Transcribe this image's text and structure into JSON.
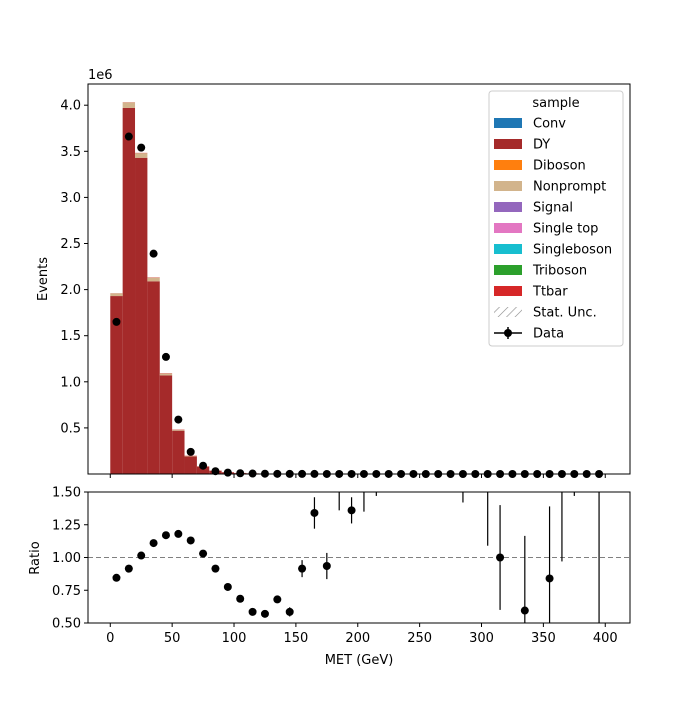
{
  "chart_data": {
    "type": "bar",
    "x": [
      5,
      15,
      25,
      35,
      45,
      55,
      65,
      75,
      85,
      95,
      105,
      115,
      125,
      135,
      145,
      155,
      165,
      175,
      185,
      195,
      205,
      215,
      225,
      235,
      245,
      255,
      265,
      275,
      285,
      295,
      305,
      315,
      325,
      335,
      345,
      355,
      365,
      375,
      385,
      395
    ],
    "bin_width": 10,
    "xlabel": "MET (GeV)",
    "ylabel": "Events",
    "y_scale_label": "1e6",
    "xlim": [
      -18,
      420
    ],
    "ylim": [
      0,
      4.23
    ],
    "xticks": [
      "0",
      "50",
      "100",
      "150",
      "200",
      "250",
      "300",
      "350",
      "400"
    ],
    "xtick_values": [
      0,
      50,
      100,
      150,
      200,
      250,
      300,
      350,
      400
    ],
    "yticks": [
      "0.5",
      "1.0",
      "1.5",
      "2.0",
      "2.5",
      "3.0",
      "3.5",
      "4.0"
    ],
    "ytick_values": [
      0.5,
      1.0,
      1.5,
      2.0,
      2.5,
      3.0,
      3.5,
      4.0
    ],
    "series": [
      {
        "name": "DY",
        "color": "#a52a2a",
        "values": [
          1.93,
          3.97,
          3.43,
          2.09,
          1.07,
          0.47,
          0.19,
          0.08,
          0.035,
          0.018,
          0.01,
          0.006,
          0.004,
          0.003,
          0.002,
          0.0015,
          0.001,
          0.0008,
          0.0006,
          0.0005,
          0.0004,
          0.0003,
          0.0003,
          0.0002,
          0.0002,
          0.0002,
          0.0001,
          0.0001,
          0.0001,
          0.0001,
          0.0001,
          0.0001,
          0.0001,
          0.0001,
          0.0001,
          0.0001,
          0.0001,
          0.0001,
          0.0001,
          0.0001
        ]
      },
      {
        "name": "Nonprompt",
        "color": "#d2b48c",
        "values": [
          0.03,
          0.06,
          0.05,
          0.04,
          0.02,
          0.01,
          0.005,
          0.003,
          0.002,
          0.001,
          0.0005,
          0.0003,
          0.0002,
          0.0001,
          0.0001,
          0.0001,
          0,
          0,
          0,
          0,
          0,
          0,
          0,
          0,
          0,
          0,
          0,
          0,
          0,
          0,
          0,
          0,
          0,
          0,
          0,
          0,
          0,
          0,
          0,
          0
        ]
      },
      {
        "name": "Ttbar",
        "color": "#d62728",
        "values": [
          0.001,
          0.002,
          0.003,
          0.003,
          0.003,
          0.003,
          0.003,
          0.002,
          0.002,
          0.001,
          0.001,
          0.001,
          0.0005,
          0.0005,
          0.0003,
          0.0002,
          0.0002,
          0.0001,
          0.0001,
          0.0001,
          0,
          0,
          0,
          0,
          0,
          0,
          0,
          0,
          0,
          0,
          0,
          0,
          0,
          0,
          0,
          0,
          0,
          0,
          0,
          0
        ]
      }
    ],
    "data": {
      "name": "Data",
      "values": [
        1.65,
        3.66,
        3.54,
        2.39,
        1.27,
        0.59,
        0.24,
        0.09,
        0.03,
        0.015,
        0.008,
        0.005,
        0.003,
        0.002,
        0.0015,
        0.001,
        0.0008,
        0.0006,
        0.0005,
        0.0004,
        0.0003,
        0.0003,
        0.0002,
        0.0002,
        0.0002,
        0.0001,
        0.0001,
        0.0001,
        0.0001,
        0.0001,
        0.0001,
        0.0001,
        0.0001,
        0.0001,
        0.0001,
        0.0001,
        0.0001,
        0.0001,
        0.0001,
        0.0001
      ]
    },
    "legend": {
      "title": "sample",
      "placement": "top-right",
      "entries": [
        {
          "label": "Conv",
          "kind": "patch",
          "color": "#1f77b4"
        },
        {
          "label": "DY",
          "kind": "patch",
          "color": "#a52a2a"
        },
        {
          "label": "Diboson",
          "kind": "patch",
          "color": "#ff7f0e"
        },
        {
          "label": "Nonprompt",
          "kind": "patch",
          "color": "#d2b48c"
        },
        {
          "label": "Signal",
          "kind": "patch",
          "color": "#9467bd"
        },
        {
          "label": "Single top",
          "kind": "patch",
          "color": "#e377c2"
        },
        {
          "label": "Singleboson",
          "kind": "patch",
          "color": "#17becf"
        },
        {
          "label": "Triboson",
          "kind": "patch",
          "color": "#2ca02c"
        },
        {
          "label": "Ttbar",
          "kind": "patch",
          "color": "#d62728"
        },
        {
          "label": "Stat. Unc.",
          "kind": "hatch",
          "color": "#888888"
        },
        {
          "label": "Data",
          "kind": "errorbar",
          "color": "#000000"
        }
      ]
    },
    "ratio": {
      "ylabel": "Ratio",
      "ylim": [
        0.5,
        1.5
      ],
      "yticks": [
        "0.50",
        "0.75",
        "1.00",
        "1.25",
        "1.50"
      ],
      "ytick_values": [
        0.5,
        0.75,
        1.0,
        1.25,
        1.5
      ],
      "reference_line": 1.0,
      "points": [
        {
          "x": 5,
          "y": 0.845,
          "err": 0.003
        },
        {
          "x": 15,
          "y": 0.915,
          "err": 0.003
        },
        {
          "x": 25,
          "y": 1.015,
          "err": 0.003
        },
        {
          "x": 35,
          "y": 1.11,
          "err": 0.004
        },
        {
          "x": 45,
          "y": 1.17,
          "err": 0.005
        },
        {
          "x": 55,
          "y": 1.18,
          "err": 0.006
        },
        {
          "x": 65,
          "y": 1.13,
          "err": 0.008
        },
        {
          "x": 75,
          "y": 1.03,
          "err": 0.01
        },
        {
          "x": 85,
          "y": 0.915,
          "err": 0.012
        },
        {
          "x": 95,
          "y": 0.775,
          "err": 0.015
        },
        {
          "x": 105,
          "y": 0.685,
          "err": 0.018
        },
        {
          "x": 115,
          "y": 0.585,
          "err": 0.02
        },
        {
          "x": 125,
          "y": 0.57,
          "err": 0.022
        },
        {
          "x": 135,
          "y": 0.68,
          "err": 0.025
        },
        {
          "x": 145,
          "y": 0.585,
          "err": 0.035
        },
        {
          "x": 155,
          "y": 0.915,
          "err": 0.065
        },
        {
          "x": 165,
          "y": 1.34,
          "err": 0.12
        },
        {
          "x": 175,
          "y": 0.935,
          "err": 0.1
        },
        {
          "x": 195,
          "y": 1.36,
          "err": 0.1
        },
        {
          "x": 315,
          "y": 1.0,
          "err": 0.4
        },
        {
          "x": 335,
          "y": 0.595,
          "err": 0.57
        },
        {
          "x": 355,
          "y": 0.84,
          "err": 0.55
        }
      ],
      "offscale_bars": [
        {
          "x": 185,
          "low": 1.36
        },
        {
          "x": 205,
          "low": 1.35
        },
        {
          "x": 215,
          "low": 1.47
        },
        {
          "x": 285,
          "low": 1.42
        },
        {
          "x": 305,
          "low": 1.09
        },
        {
          "x": 365,
          "low": 0.97
        },
        {
          "x": 375,
          "low": 1.47
        },
        {
          "x": 395,
          "low": 0.5
        }
      ]
    }
  }
}
